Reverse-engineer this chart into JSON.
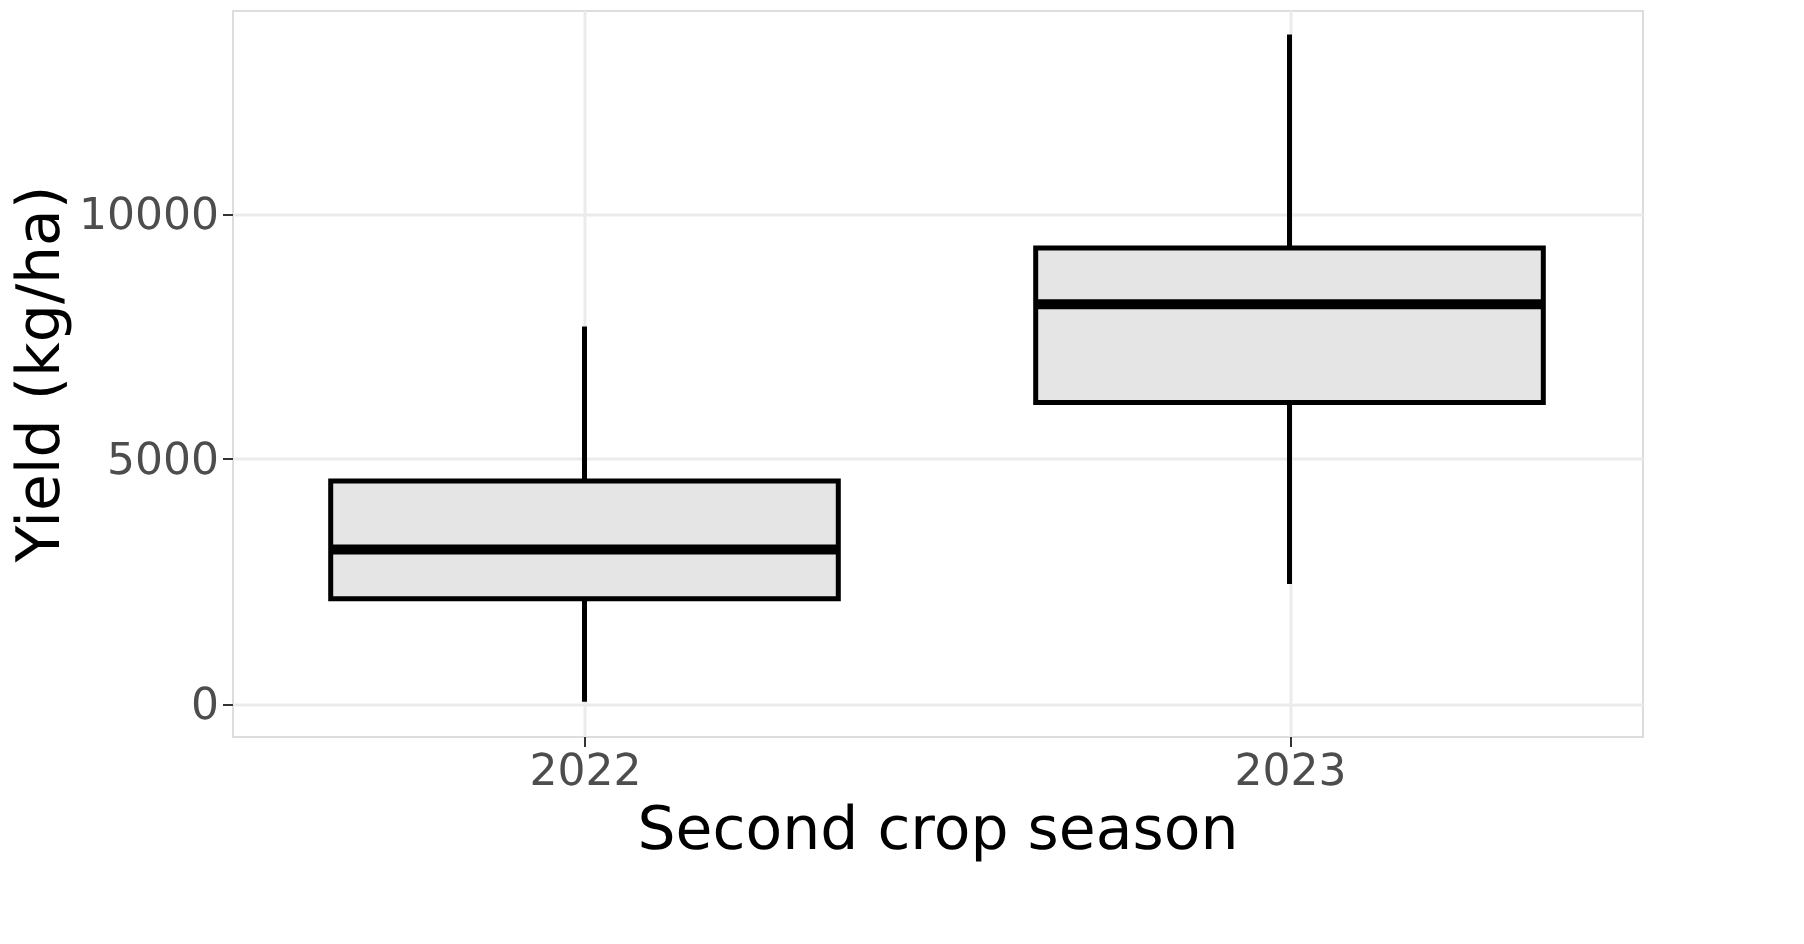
{
  "chart_data": {
    "type": "box",
    "xlabel": "Second crop season",
    "ylabel": "Yield (kg/ha)",
    "categories": [
      "2022",
      "2023"
    ],
    "boxes": [
      {
        "low": 50,
        "q1": 2150,
        "median": 3150,
        "q3": 4550,
        "high": 7700
      },
      {
        "low": 2450,
        "q1": 6150,
        "median": 8150,
        "q3": 9300,
        "high": 13650
      }
    ],
    "color": "#e5e5e5",
    "ylim": [
      -650,
      14150
    ],
    "yticks": [
      0,
      5000,
      10000
    ],
    "grid": true
  }
}
